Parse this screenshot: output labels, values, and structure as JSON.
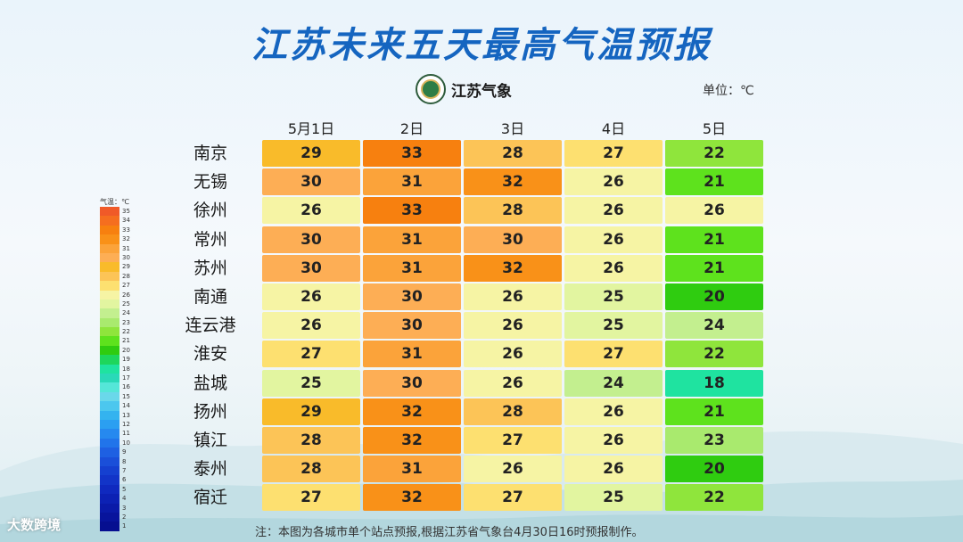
{
  "title": "江苏未来五天最高气温预报",
  "logo_text": "江苏气象",
  "unit": "单位：℃",
  "legend_title": "气温：℃",
  "note": "注：本图为各城市单个站点预报,根据江苏省气象台4月30日16时预报制作。",
  "watermark": "大数跨境",
  "chart_data": {
    "type": "heatmap",
    "title": "江苏未来五天最高气温预报",
    "columns": [
      "5月1日",
      "2日",
      "3日",
      "4日",
      "5日"
    ],
    "rows": [
      "南京",
      "无锡",
      "徐州",
      "常州",
      "苏州",
      "南通",
      "连云港",
      "淮安",
      "盐城",
      "扬州",
      "镇江",
      "泰州",
      "宿迁"
    ],
    "values": [
      [
        29,
        33,
        28,
        27,
        22
      ],
      [
        30,
        31,
        32,
        26,
        21
      ],
      [
        26,
        33,
        28,
        26,
        26
      ],
      [
        30,
        31,
        30,
        26,
        21
      ],
      [
        30,
        31,
        32,
        26,
        21
      ],
      [
        26,
        30,
        26,
        25,
        20
      ],
      [
        26,
        30,
        26,
        25,
        24
      ],
      [
        27,
        31,
        26,
        27,
        22
      ],
      [
        25,
        30,
        26,
        24,
        18
      ],
      [
        29,
        32,
        28,
        26,
        21
      ],
      [
        28,
        32,
        27,
        26,
        23
      ],
      [
        28,
        31,
        26,
        26,
        20
      ],
      [
        27,
        32,
        27,
        25,
        22
      ]
    ],
    "legend_levels": [
      35,
      34,
      33,
      32,
      31,
      30,
      29,
      28,
      27,
      26,
      25,
      24,
      23,
      22,
      21,
      20,
      19,
      18,
      17,
      16,
      15,
      14,
      13,
      12,
      11,
      10,
      9,
      8,
      7,
      6,
      5,
      4,
      3,
      2,
      1
    ],
    "level_colors": {
      "35": "#f05a28",
      "34": "#f56e1f",
      "33": "#f7800f",
      "32": "#f99118",
      "31": "#fba33a",
      "30": "#fdae55",
      "29": "#f9bb2a",
      "28": "#fcc457",
      "27": "#fde070",
      "26": "#f6f4a4",
      "25": "#e2f5a0",
      "24": "#c3ef8f",
      "23": "#a9ea6e",
      "22": "#8fe53c",
      "21": "#5ee21d",
      "20": "#2fcc10",
      "19": "#1ed65c",
      "18": "#1fe3a0",
      "17": "#2ad9b8",
      "16": "#55e6d8",
      "15": "#6ad8ea",
      "14": "#4cc7ee",
      "13": "#34b3ef",
      "12": "#2b9ff1",
      "11": "#2689ef",
      "10": "#2174ea",
      "9": "#1e60e2",
      "8": "#1a4fd9",
      "7": "#1540d0",
      "6": "#1234c8",
      "5": "#0f29bf",
      "4": "#0c21b4",
      "3": "#0a1aa8",
      "2": "#08149c",
      "1": "#060f90"
    }
  }
}
